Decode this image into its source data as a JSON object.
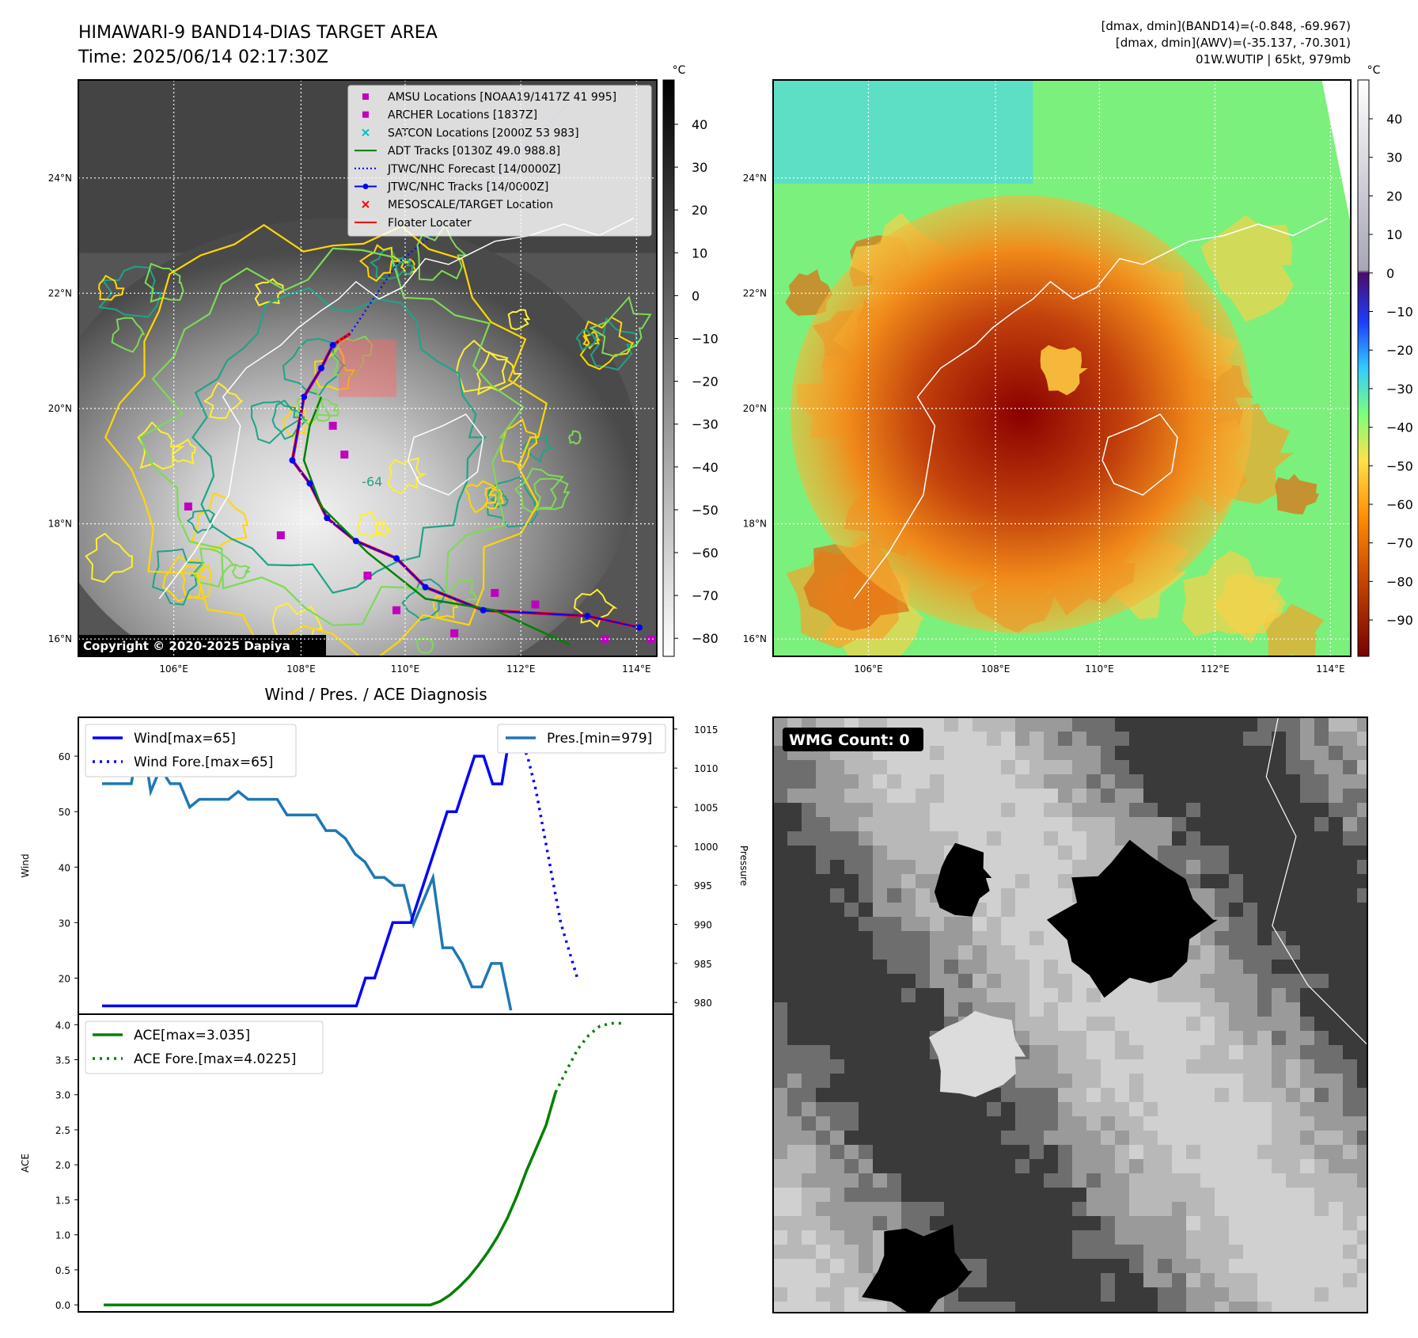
{
  "header": {
    "title_line1": "HIMAWARI-9 BAND14-DIAS TARGET AREA",
    "title_line2": "Time: 2025/06/14 02:17:30Z",
    "right_line1": "[dmax, dmin](BAND14)=(-0.848, -69.967)",
    "right_line2": "[dmax, dmin](AWV)=(-35.137, -70.301)",
    "right_line3": "01W.WUTIP | 65kt, 979mb"
  },
  "maps": {
    "lon_labels": [
      "106°E",
      "108°E",
      "110°E",
      "112°E",
      "114°E"
    ],
    "lat_labels": [
      "24°N",
      "22°N",
      "20°N",
      "18°N",
      "16°N"
    ],
    "copyright": "Copyright © 2020-2025 Dapiya",
    "left_colorbar": {
      "unit": "°C",
      "ticks": [
        "40",
        "30",
        "20",
        "10",
        "0",
        "−10",
        "−20",
        "−30",
        "−40",
        "−50",
        "−60",
        "−70",
        "−80"
      ]
    },
    "right_colorbar": {
      "unit": "°C",
      "ticks": [
        "40",
        "30",
        "20",
        "10",
        "0",
        "−10",
        "−20",
        "−30",
        "−40",
        "−50",
        "−60",
        "−70",
        "−80",
        "−90"
      ]
    },
    "legend": [
      {
        "label": "AMSU Locations [NOAA19/1417Z 41 995]",
        "color": "#bf00bf",
        "marker": "square"
      },
      {
        "label": "ARCHER Locations [1837Z]",
        "color": "#bf00bf",
        "marker": "square"
      },
      {
        "label": "SATCON Locations [2000Z 53 983]",
        "color": "#00bfbf",
        "marker": "x"
      },
      {
        "label": "ADT Tracks [0130Z 49.0 988.8]",
        "color": "#008000",
        "marker": "line"
      },
      {
        "label": "JTWC/NHC Forecast [14/0000Z]",
        "color": "#0000ff",
        "marker": "dotted"
      },
      {
        "label": "JTWC/NHC Tracks [14/0000Z]",
        "color": "#0000ff",
        "marker": "line-dot"
      },
      {
        "label": "MESOSCALE/TARGET Location",
        "color": "#ff0000",
        "marker": "x"
      },
      {
        "label": "Floater Locater",
        "color": "#ff0000",
        "marker": "line"
      }
    ],
    "contour_label": "-64",
    "wmg_label": "WMG Count: 0"
  },
  "diagnosis": {
    "title": "Wind / Pres. / ACE Diagnosis",
    "wind_ylabel": "Wind",
    "pres_ylabel": "Pressure",
    "ace_ylabel": "ACE",
    "legend_wind": "Wind[max=65]",
    "legend_wind_fore": "Wind Fore.[max=65]",
    "legend_pres": "Pres.[min=979]",
    "legend_ace": "ACE[max=3.035]",
    "legend_ace_fore": "ACE Fore.[max=4.0225]",
    "wind_ticks": [
      "20",
      "30",
      "40",
      "50",
      "60"
    ],
    "pres_ticks": [
      "980",
      "985",
      "990",
      "995",
      "1000",
      "1005",
      "1010",
      "1015"
    ],
    "ace_ticks": [
      "0.0",
      "0.5",
      "1.0",
      "1.5",
      "2.0",
      "2.5",
      "3.0",
      "3.5",
      "4.0"
    ]
  },
  "chart_data": [
    {
      "type": "line",
      "series": [
        {
          "name": "Wind[max=65]",
          "color": "#0000ff",
          "values": [
            15,
            15,
            15,
            15,
            15,
            15,
            15,
            15,
            15,
            15,
            15,
            15,
            15,
            15,
            15,
            15,
            15,
            15,
            15,
            15,
            15,
            15,
            15,
            15,
            15,
            15,
            15,
            15,
            15,
            20,
            20,
            25,
            30,
            30,
            30,
            35,
            40,
            45,
            50,
            50,
            55,
            60,
            60,
            55,
            55,
            65
          ]
        },
        {
          "name": "Wind Fore.[max=65]",
          "color": "#0000ff",
          "dashed": true,
          "values": [
            65,
            63,
            60,
            54,
            46,
            38,
            30,
            25,
            20
          ]
        },
        {
          "name": "Pres.[min=979]",
          "color": "#1f77b4",
          "values": [
            1008,
            1008,
            1008,
            1008,
            1015,
            1007,
            1010,
            1008,
            1008,
            1005,
            1006,
            1006,
            1006,
            1006,
            1007,
            1006,
            1006,
            1006,
            1006,
            1004,
            1004,
            1004,
            1004,
            1002,
            1002,
            1001,
            999,
            998,
            996,
            996,
            995,
            995,
            990,
            993,
            996,
            987,
            987,
            985,
            982,
            982,
            985,
            985,
            979
          ]
        }
      ],
      "wind_ylim": [
        13.5,
        67
      ],
      "pres_ylim": [
        978.5,
        1016.5
      ]
    },
    {
      "type": "line",
      "series": [
        {
          "name": "ACE[max=3.035]",
          "color": "#008000",
          "values": [
            0,
            0,
            0,
            0,
            0,
            0,
            0,
            0,
            0,
            0,
            0,
            0,
            0,
            0,
            0,
            0,
            0,
            0,
            0,
            0,
            0,
            0,
            0,
            0,
            0,
            0,
            0,
            0,
            0,
            0,
            0,
            0,
            0,
            0,
            0,
            0.05,
            0.14,
            0.26,
            0.4,
            0.57,
            0.76,
            0.98,
            1.24,
            1.56,
            1.92,
            2.24,
            2.56,
            3.035
          ]
        },
        {
          "name": "ACE Fore.[max=4.0225]",
          "color": "#008000",
          "dashed": true,
          "values": [
            3.035,
            3.35,
            3.65,
            3.85,
            3.98,
            4.02,
            4.02
          ]
        }
      ],
      "ylim": [
        -0.1,
        4.15
      ]
    }
  ]
}
